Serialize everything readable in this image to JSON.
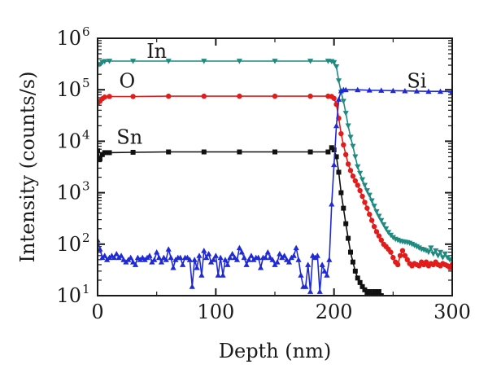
{
  "chart_data": {
    "type": "line",
    "xlabel": "Depth (nm)",
    "ylabel": "Intensity (counts/s)",
    "xlim": [
      0,
      300
    ],
    "ylim": [
      10,
      1000000
    ],
    "yscale": "log",
    "grid": false,
    "x_ticks": [
      {
        "value": 0,
        "label": "0"
      },
      {
        "value": 100,
        "label": "100"
      },
      {
        "value": 200,
        "label": "200"
      },
      {
        "value": 300,
        "label": "300"
      }
    ],
    "y_ticks": [
      {
        "value": 10,
        "base": "10",
        "exp": "1"
      },
      {
        "value": 100,
        "base": "10",
        "exp": "2"
      },
      {
        "value": 1000,
        "base": "10",
        "exp": "3"
      },
      {
        "value": 10000,
        "base": "10",
        "exp": "4"
      },
      {
        "value": 100000,
        "base": "10",
        "exp": "5"
      },
      {
        "value": 1000000,
        "base": "10",
        "exp": "6"
      }
    ],
    "series": [
      {
        "name": "In",
        "color": "#1f8a80",
        "marker": "triangle-down",
        "label_at": [
          50,
          420000
        ],
        "points": [
          [
            0,
            290000
          ],
          [
            2,
            310000
          ],
          [
            4,
            340000
          ],
          [
            6,
            355000
          ],
          [
            10,
            360000
          ],
          [
            30,
            360000
          ],
          [
            60,
            360000
          ],
          [
            90,
            360000
          ],
          [
            120,
            360000
          ],
          [
            150,
            360000
          ],
          [
            180,
            360000
          ],
          [
            195,
            360000
          ],
          [
            198,
            355000
          ],
          [
            200,
            340000
          ],
          [
            202,
            280000
          ],
          [
            204,
            150000
          ],
          [
            206,
            90000
          ],
          [
            208,
            60000
          ],
          [
            210,
            35000
          ],
          [
            212,
            20000
          ],
          [
            214,
            12000
          ],
          [
            216,
            8000
          ],
          [
            218,
            5000
          ],
          [
            220,
            3200
          ],
          [
            222,
            2400
          ],
          [
            224,
            1800
          ],
          [
            226,
            1400
          ],
          [
            228,
            1100
          ],
          [
            230,
            900
          ],
          [
            232,
            700
          ],
          [
            234,
            550
          ],
          [
            236,
            430
          ],
          [
            238,
            350
          ],
          [
            240,
            290
          ],
          [
            242,
            240
          ],
          [
            244,
            200
          ],
          [
            246,
            170
          ],
          [
            248,
            150
          ],
          [
            250,
            135
          ],
          [
            252,
            125
          ],
          [
            254,
            120
          ],
          [
            256,
            115
          ],
          [
            258,
            112
          ],
          [
            260,
            110
          ],
          [
            262,
            108
          ],
          [
            264,
            105
          ],
          [
            266,
            100
          ],
          [
            268,
            95
          ],
          [
            270,
            90
          ],
          [
            272,
            85
          ],
          [
            274,
            80
          ],
          [
            276,
            78
          ],
          [
            278,
            75
          ],
          [
            280,
            70
          ],
          [
            282,
            85
          ],
          [
            284,
            65
          ],
          [
            286,
            75
          ],
          [
            288,
            60
          ],
          [
            290,
            70
          ],
          [
            292,
            55
          ],
          [
            294,
            65
          ],
          [
            296,
            55
          ],
          [
            298,
            50
          ],
          [
            300,
            48
          ]
        ]
      },
      {
        "name": "O",
        "color": "#e31b1b",
        "marker": "circle",
        "label_at": [
          25,
          110000
        ],
        "points": [
          [
            0,
            55000
          ],
          [
            2,
            60000
          ],
          [
            4,
            67000
          ],
          [
            6,
            72000
          ],
          [
            10,
            74000
          ],
          [
            30,
            74000
          ],
          [
            60,
            75000
          ],
          [
            90,
            75000
          ],
          [
            120,
            75000
          ],
          [
            150,
            75000
          ],
          [
            180,
            75000
          ],
          [
            195,
            75000
          ],
          [
            198,
            74000
          ],
          [
            200,
            68000
          ],
          [
            202,
            52000
          ],
          [
            204,
            28000
          ],
          [
            206,
            14000
          ],
          [
            208,
            8500
          ],
          [
            210,
            5500
          ],
          [
            212,
            3600
          ],
          [
            214,
            2700
          ],
          [
            216,
            2100
          ],
          [
            218,
            1700
          ],
          [
            220,
            1400
          ],
          [
            222,
            1100
          ],
          [
            224,
            850
          ],
          [
            226,
            650
          ],
          [
            228,
            500
          ],
          [
            230,
            380
          ],
          [
            232,
            290
          ],
          [
            234,
            220
          ],
          [
            236,
            175
          ],
          [
            238,
            145
          ],
          [
            240,
            120
          ],
          [
            242,
            100
          ],
          [
            244,
            90
          ],
          [
            246,
            80
          ],
          [
            248,
            70
          ],
          [
            250,
            55
          ],
          [
            252,
            45
          ],
          [
            254,
            40
          ],
          [
            256,
            60
          ],
          [
            258,
            75
          ],
          [
            260,
            60
          ],
          [
            262,
            50
          ],
          [
            264,
            42
          ],
          [
            266,
            38
          ],
          [
            268,
            42
          ],
          [
            270,
            40
          ],
          [
            272,
            38
          ],
          [
            274,
            45
          ],
          [
            276,
            40
          ],
          [
            278,
            45
          ],
          [
            280,
            38
          ],
          [
            282,
            42
          ],
          [
            284,
            40
          ],
          [
            286,
            45
          ],
          [
            288,
            40
          ],
          [
            290,
            38
          ],
          [
            292,
            42
          ],
          [
            294,
            40
          ],
          [
            296,
            38
          ],
          [
            298,
            35
          ],
          [
            300,
            40
          ]
        ]
      },
      {
        "name": "Sn",
        "color": "#111111",
        "marker": "square",
        "label_at": [
          27,
          9000
        ],
        "points": [
          [
            0,
            6500
          ],
          [
            2,
            4500
          ],
          [
            4,
            5500
          ],
          [
            6,
            6000
          ],
          [
            10,
            6000
          ],
          [
            30,
            6100
          ],
          [
            60,
            6200
          ],
          [
            90,
            6200
          ],
          [
            120,
            6200
          ],
          [
            150,
            6200
          ],
          [
            180,
            6200
          ],
          [
            195,
            6200
          ],
          [
            198,
            7500
          ],
          [
            200,
            6800
          ],
          [
            202,
            5000
          ],
          [
            204,
            2500
          ],
          [
            206,
            1000
          ],
          [
            208,
            500
          ],
          [
            210,
            250
          ],
          [
            212,
            130
          ],
          [
            214,
            70
          ],
          [
            216,
            45
          ],
          [
            218,
            30
          ],
          [
            220,
            22
          ],
          [
            222,
            18
          ],
          [
            224,
            15
          ],
          [
            226,
            13
          ],
          [
            228,
            11
          ],
          [
            230,
            12
          ],
          [
            232,
            10
          ],
          [
            234,
            12
          ],
          [
            236,
            10
          ],
          [
            238,
            12
          ],
          [
            240,
            10
          ]
        ]
      },
      {
        "name": "Si",
        "color": "#1f2ad6",
        "marker": "triangle-up",
        "label_at": [
          270,
          110000
        ],
        "points": [
          [
            0,
            120
          ],
          [
            2,
            80
          ],
          [
            4,
            55
          ],
          [
            6,
            60
          ],
          [
            8,
            50
          ],
          [
            10,
            55
          ],
          [
            12,
            60
          ],
          [
            14,
            55
          ],
          [
            16,
            65
          ],
          [
            18,
            55
          ],
          [
            20,
            60
          ],
          [
            22,
            50
          ],
          [
            24,
            45
          ],
          [
            26,
            50
          ],
          [
            28,
            55
          ],
          [
            30,
            45
          ],
          [
            32,
            40
          ],
          [
            34,
            55
          ],
          [
            36,
            50
          ],
          [
            38,
            55
          ],
          [
            40,
            50
          ],
          [
            42,
            55
          ],
          [
            44,
            60
          ],
          [
            46,
            45
          ],
          [
            48,
            50
          ],
          [
            50,
            70
          ],
          [
            52,
            55
          ],
          [
            54,
            45
          ],
          [
            56,
            55
          ],
          [
            58,
            50
          ],
          [
            60,
            80
          ],
          [
            62,
            55
          ],
          [
            64,
            35
          ],
          [
            66,
            50
          ],
          [
            68,
            55
          ],
          [
            70,
            55
          ],
          [
            72,
            40
          ],
          [
            74,
            55
          ],
          [
            76,
            55
          ],
          [
            78,
            50
          ],
          [
            80,
            15
          ],
          [
            82,
            50
          ],
          [
            84,
            35
          ],
          [
            86,
            60
          ],
          [
            88,
            25
          ],
          [
            90,
            75
          ],
          [
            92,
            55
          ],
          [
            94,
            65
          ],
          [
            96,
            45
          ],
          [
            98,
            50
          ],
          [
            100,
            60
          ],
          [
            102,
            25
          ],
          [
            104,
            55
          ],
          [
            106,
            25
          ],
          [
            108,
            50
          ],
          [
            110,
            40
          ],
          [
            112,
            55
          ],
          [
            114,
            65
          ],
          [
            116,
            55
          ],
          [
            118,
            50
          ],
          [
            120,
            85
          ],
          [
            122,
            70
          ],
          [
            124,
            55
          ],
          [
            126,
            40
          ],
          [
            128,
            50
          ],
          [
            130,
            60
          ],
          [
            132,
            50
          ],
          [
            134,
            55
          ],
          [
            136,
            55
          ],
          [
            138,
            35
          ],
          [
            140,
            55
          ],
          [
            142,
            55
          ],
          [
            144,
            70
          ],
          [
            146,
            55
          ],
          [
            148,
            50
          ],
          [
            150,
            40
          ],
          [
            152,
            45
          ],
          [
            154,
            65
          ],
          [
            156,
            55
          ],
          [
            158,
            60
          ],
          [
            160,
            50
          ],
          [
            162,
            45
          ],
          [
            164,
            55
          ],
          [
            166,
            60
          ],
          [
            168,
            85
          ],
          [
            170,
            50
          ],
          [
            172,
            25
          ],
          [
            174,
            15
          ],
          [
            176,
            15
          ],
          [
            178,
            40
          ],
          [
            180,
            12
          ],
          [
            182,
            60
          ],
          [
            184,
            55
          ],
          [
            186,
            60
          ],
          [
            188,
            12
          ],
          [
            190,
            40
          ],
          [
            192,
            30
          ],
          [
            194,
            25
          ],
          [
            196,
            50
          ],
          [
            198,
            600
          ],
          [
            200,
            3500
          ],
          [
            202,
            20000
          ],
          [
            204,
            65000
          ],
          [
            206,
            95000
          ],
          [
            208,
            100000
          ],
          [
            210,
            100000
          ],
          [
            220,
            100000
          ],
          [
            230,
            98000
          ],
          [
            240,
            97000
          ],
          [
            250,
            96000
          ],
          [
            260,
            95000
          ],
          [
            270,
            94000
          ],
          [
            280,
            93000
          ],
          [
            290,
            93000
          ],
          [
            300,
            92000
          ]
        ]
      }
    ]
  }
}
